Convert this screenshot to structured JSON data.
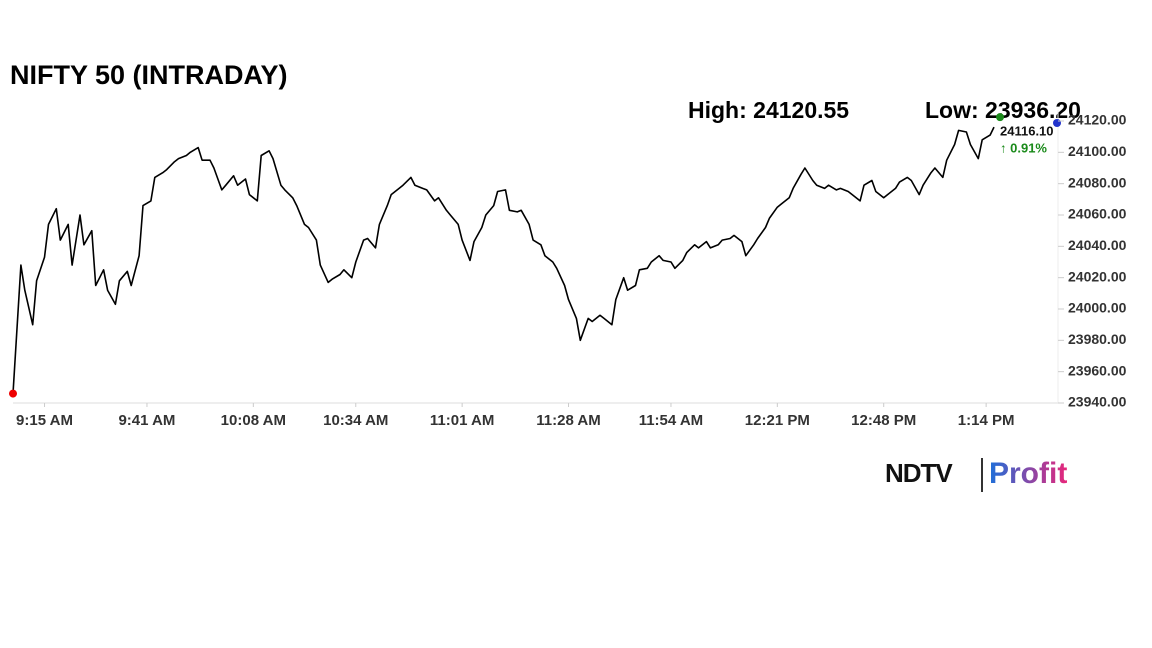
{
  "chart_data": {
    "type": "line",
    "title": "NIFTY 50 (INTRADAY)",
    "high": "High: 24120.55",
    "low": "Low: 23936.20",
    "last": {
      "value": 24116.1,
      "label": "24116.10",
      "change": "↑ 0.91%"
    },
    "brand": [
      "NDTV",
      "Profit"
    ],
    "color": "#000000",
    "x": [
      "9:07 AM",
      "9:09 AM",
      "9:10 AM",
      "9:12 AM",
      "9:13 AM",
      "9:15 AM",
      "9:16 AM",
      "9:18 AM",
      "9:19 AM",
      "9:21 AM",
      "9:22 AM",
      "9:24 AM",
      "9:25 AM",
      "9:27 AM",
      "9:28 AM",
      "9:30 AM",
      "9:31 AM",
      "9:33 AM",
      "9:34 AM",
      "9:36 AM",
      "9:37 AM",
      "9:39 AM",
      "9:40 AM",
      "9:42 AM",
      "9:43 AM",
      "9:45 AM",
      "9:46 AM",
      "9:48 AM",
      "9:49 AM",
      "9:51 AM",
      "9:52 AM",
      "9:54 AM",
      "9:55 AM",
      "9:57 AM",
      "9:58 AM",
      "10:00 AM",
      "10:01 AM",
      "10:03 AM",
      "10:04 AM",
      "10:06 AM",
      "10:07 AM",
      "10:09 AM",
      "10:10 AM",
      "10:12 AM",
      "10:13 AM",
      "10:15 AM",
      "10:16 AM",
      "10:18 AM",
      "10:19 AM",
      "10:21 AM",
      "10:22 AM",
      "10:24 AM",
      "10:25 AM",
      "10:27 AM",
      "10:28 AM",
      "10:30 AM",
      "10:31 AM",
      "10:33 AM",
      "10:34 AM",
      "10:36 AM",
      "10:37 AM",
      "10:39 AM",
      "10:40 AM",
      "10:42 AM",
      "10:43 AM",
      "10:45 AM",
      "10:46 AM",
      "10:48 AM",
      "10:49 AM",
      "10:51 AM",
      "10:52 AM",
      "10:54 AM",
      "10:55 AM",
      "10:57 AM",
      "10:58 AM",
      "11:00 AM",
      "11:01 AM",
      "11:03 AM",
      "11:04 AM",
      "11:06 AM",
      "11:07 AM",
      "11:09 AM",
      "11:10 AM",
      "11:12 AM",
      "11:13 AM",
      "11:15 AM",
      "11:16 AM",
      "11:18 AM",
      "11:19 AM",
      "11:21 AM",
      "11:22 AM",
      "11:24 AM",
      "11:25 AM",
      "11:27 AM",
      "11:28 AM",
      "11:30 AM",
      "11:31 AM",
      "11:33 AM",
      "11:34 AM",
      "11:36 AM",
      "11:37 AM",
      "11:39 AM",
      "11:40 AM",
      "11:42 AM",
      "11:43 AM",
      "11:45 AM",
      "11:46 AM",
      "11:48 AM",
      "11:49 AM",
      "11:51 AM",
      "11:52 AM",
      "11:54 AM",
      "11:55 AM",
      "11:57 AM",
      "11:58 AM",
      "12:00 PM",
      "12:01 PM",
      "12:03 PM",
      "12:04 PM",
      "12:06 PM",
      "12:07 PM",
      "12:09 PM",
      "12:10 PM",
      "12:12 PM",
      "12:13 PM",
      "12:15 PM",
      "12:16 PM",
      "12:18 PM",
      "12:19 PM",
      "12:21 PM",
      "12:22 PM",
      "12:24 PM",
      "12:25 PM",
      "12:27 PM",
      "12:28 PM",
      "12:30 PM",
      "12:31 PM",
      "12:33 PM",
      "12:34 PM",
      "12:36 PM",
      "12:37 PM",
      "12:39 PM",
      "12:40 PM",
      "12:42 PM",
      "12:43 PM",
      "12:45 PM",
      "12:46 PM",
      "12:48 PM",
      "12:49 PM",
      "12:51 PM",
      "12:52 PM",
      "12:54 PM",
      "12:55 PM",
      "12:57 PM",
      "12:58 PM",
      "1:00 PM",
      "1:01 PM",
      "1:03 PM",
      "1:04 PM",
      "1:06 PM",
      "1:07 PM",
      "1:09 PM",
      "1:10 PM",
      "1:12 PM",
      "1:13 PM",
      "1:15 PM",
      "1:16 PM"
    ],
    "values": [
      23946,
      24028,
      24012,
      23990,
      24018,
      24033,
      24054,
      24064,
      24044,
      24054,
      24028,
      24060,
      24041,
      24050,
      24015,
      24025,
      24012,
      24003,
      24018,
      24024,
      24015,
      24034,
      24066,
      24069,
      24084,
      24087,
      24089,
      24094,
      24096,
      24098,
      24100,
      24103,
      24095,
      24095,
      24090,
      24076,
      24079,
      24085,
      24079,
      24083,
      24073,
      24069,
      24098,
      24101,
      24096,
      24079,
      24076,
      24071,
      24066,
      24054,
      24052,
      24044,
      24028,
      24017,
      24019,
      24022,
      24025,
      24020,
      24030,
      24044,
      24045,
      24039,
      24054,
      24066,
      24073,
      24077,
      24079,
      24084,
      24079,
      24077,
      24076,
      24069,
      24071,
      24063,
      24060,
      24054,
      24044,
      24031,
      24043,
      24052,
      24060,
      24066,
      24075,
      24076,
      24063,
      24062,
      24063,
      24054,
      24044,
      24041,
      24034,
      24030,
      24026,
      24015,
      24006,
      23994,
      23980,
      23994,
      23992,
      23996,
      23994,
      23990,
      24006,
      24020,
      24012,
      24015,
      24025,
      24026,
      24030,
      24034,
      24031,
      24030,
      24026,
      24031,
      24036,
      24041,
      24039,
      24043,
      24039,
      24041,
      24044,
      24045,
      24047,
      24043,
      24034,
      24041,
      24045,
      24052,
      24058,
      24065,
      24067,
      24071,
      24077,
      24086,
      24090,
      24082,
      24079,
      24077,
      24079,
      24076,
      24077,
      24075,
      24073,
      24069,
      24079,
      24082,
      24075,
      24071,
      24073,
      24077,
      24081,
      24084,
      24082,
      24073,
      24079,
      24087,
      24090,
      24084,
      24095,
      24105,
      24114,
      24113,
      24105,
      24096,
      24108,
      24111,
      24116.1
    ],
    "xlim": [
      "9:07 AM",
      "1:33 PM"
    ],
    "xticks": [
      "9:15 AM",
      "9:41 AM",
      "10:08 AM",
      "10:34 AM",
      "11:01 AM",
      "11:28 AM",
      "11:54 AM",
      "12:21 PM",
      "12:48 PM",
      "1:14 PM"
    ],
    "ylim": [
      23940,
      24120
    ],
    "yticks": [
      {
        "value": 23940,
        "label": "23940.00"
      },
      {
        "value": 23960,
        "label": "23960.00"
      },
      {
        "value": 23980,
        "label": "23980.00"
      },
      {
        "value": 24000,
        "label": "24000.00"
      },
      {
        "value": 24020,
        "label": "24020.00"
      },
      {
        "value": 24040,
        "label": "24040.00"
      },
      {
        "value": 24060,
        "label": "24060.00"
      },
      {
        "value": 24080,
        "label": "24080.00"
      },
      {
        "value": 24100,
        "label": "24100.00"
      },
      {
        "value": 24120,
        "label": "24120.00"
      }
    ]
  }
}
